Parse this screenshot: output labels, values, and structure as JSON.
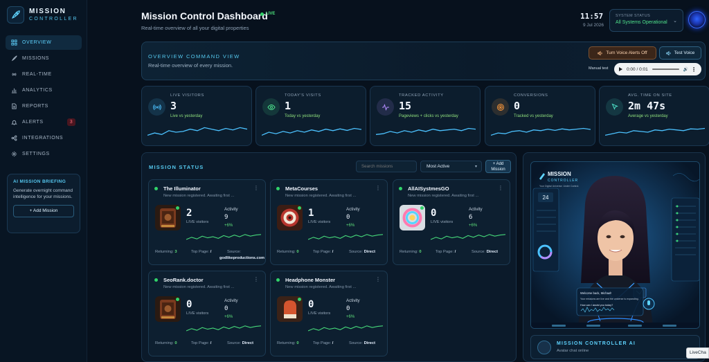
{
  "brand": {
    "name": "MISSION",
    "subtitle": "CONTROLLER"
  },
  "sidebar": {
    "items": [
      {
        "label": "OVERVIEW",
        "icon": "grid-icon",
        "active": true
      },
      {
        "label": "MISSIONS",
        "icon": "rocket-icon"
      },
      {
        "label": "REAL-TIME",
        "icon": "broadcast-icon"
      },
      {
        "label": "ANALYTICS",
        "icon": "bar-chart-icon"
      },
      {
        "label": "REPORTS",
        "icon": "document-icon"
      },
      {
        "label": "ALERTS",
        "icon": "bell-icon",
        "badge": "3"
      },
      {
        "label": "INTEGRATIONS",
        "icon": "link-icon"
      },
      {
        "label": "SETTINGS",
        "icon": "gear-icon"
      }
    ],
    "briefing": {
      "title": "AI MISSION BRIEFING",
      "text": "Generate overnight command intelligence for your missions.",
      "button": "+ Add Mission"
    }
  },
  "header": {
    "title": "Mission Control Dashboard",
    "live": "LIVE",
    "subtitle": "Real-time overview of all your digital properties",
    "clock": "11:57",
    "date": "9 Jul 2026",
    "system_status_label": "SYSTEM STATUS",
    "system_status_value": "All Systems Operational"
  },
  "command": {
    "title": "OVERVIEW COMMAND VIEW",
    "subtitle": "Real-time overview of every mission.",
    "voice_off": "Turn Voice Alerts Off",
    "voice_test": "Test Voice",
    "manual_label": "Manual test",
    "audio_time": "0:00 / 0:01"
  },
  "stats": [
    {
      "label": "LIVE VISITORS",
      "value": "3",
      "sub": "Live vs yesterday",
      "icon": "broadcast-icon",
      "color": "#4cc2ff"
    },
    {
      "label": "TODAY'S VISITS",
      "value": "1",
      "sub": "Today vs yesterday",
      "icon": "eye-icon",
      "color": "#4de08c"
    },
    {
      "label": "TRACKED ACTIVITY",
      "value": "15",
      "sub": "Pageviews + clicks vs yesterday",
      "icon": "pulse-icon",
      "color": "#b48cff"
    },
    {
      "label": "CONVERSIONS",
      "value": "0",
      "sub": "Tracked vs yesterday",
      "icon": "target-icon",
      "color": "#ff9a3c"
    },
    {
      "label": "AVG. TIME ON SITE",
      "value": "2m 47s",
      "sub": "Average vs yesterday",
      "icon": "cursor-icon",
      "color": "#4de0c8"
    }
  ],
  "missions": {
    "title": "MISSION STATUS",
    "search_placeholder": "Search missions",
    "sort": "Most Active",
    "add": "+ Add Mission",
    "cards": [
      {
        "name": "The Illuminator",
        "desc": "New mission registered. Awaiting first ...",
        "live": "2",
        "live_label": "LIVE visitors",
        "activity_label": "Activity",
        "activity": "9",
        "delta": "+6%",
        "returning_label": "Returning:",
        "returning": "3",
        "top_label": "Top Page:",
        "top": "/",
        "source_label": "Source:",
        "source": "godlikeproductions.com",
        "thumb": "guitar-amp"
      },
      {
        "name": "MetaCourses",
        "desc": "New mission registered. Awaiting first ...",
        "live": "1",
        "live_label": "LIVE visitors",
        "activity_label": "Activity",
        "activity": "0",
        "delta": "+6%",
        "returning_label": "Returning:",
        "returning": "0",
        "top_label": "Top Page:",
        "top": "/",
        "source_label": "Source:",
        "source": "Direct",
        "thumb": "target"
      },
      {
        "name": "AllAISystmesGO",
        "desc": "New mission registered. Awaiting first ...",
        "live": "0",
        "live_label": "LIVE visitors",
        "activity_label": "Activity",
        "activity": "6",
        "delta": "+6%",
        "returning_label": "Returning:",
        "returning": "0",
        "top_label": "Top Page:",
        "top": "/",
        "source_label": "Source:",
        "source": "Direct",
        "thumb": "ai-swirl"
      },
      {
        "name": "SeoRank.doctor",
        "desc": "New mission registered. Awaiting first ...",
        "live": "0",
        "live_label": "LIVE visitors",
        "activity_label": "Activity",
        "activity": "0",
        "delta": "+6%",
        "returning_label": "Returning:",
        "returning": "0",
        "top_label": "Top Page:",
        "top": "/",
        "source_label": "Source:",
        "source": "Direct",
        "thumb": "guitar-amp"
      },
      {
        "name": "Headphone Monster",
        "desc": "New mission registered. Awaiting first ...",
        "live": "0",
        "live_label": "LIVE visitors",
        "activity_label": "Activity",
        "activity": "0",
        "delta": "+6%",
        "returning_label": "Returning:",
        "returning": "0",
        "top_label": "Top Page:",
        "top": "/",
        "source_label": "Source:",
        "source": "Direct",
        "thumb": "boxing-glove"
      }
    ]
  },
  "ai": {
    "title": "MISSION CONTROLLER AI",
    "subtitle": "Avatar chat online",
    "screen_brand": "MISSION",
    "screen_brand_sub": "CONTROLLER",
    "screen_tagline": "Your Digital Universe. Under Control.",
    "screen_metric": "24",
    "chat_greeting": "Welcome back, Michael!",
    "chat_line": "Your missions are live and the universe is expanding.",
    "chat_question": "How can I assist you today?"
  },
  "livechat": "LiveCha"
}
